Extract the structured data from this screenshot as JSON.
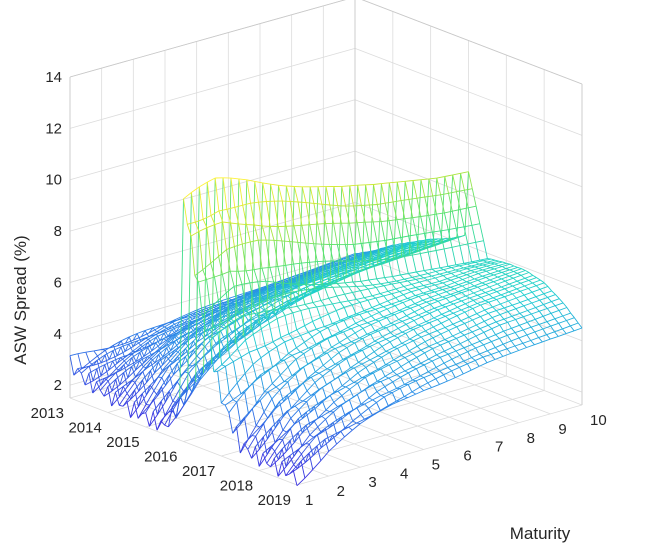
{
  "chart_data": {
    "type": "surface-mesh",
    "zlabel": "ASW Spread (%)",
    "ylabel": "Maturity",
    "x_ticks": [
      "2013",
      "2014",
      "2015",
      "2016",
      "2017",
      "2018",
      "2019"
    ],
    "y_ticks": [
      "1",
      "2",
      "3",
      "4",
      "5",
      "6",
      "7",
      "8",
      "9",
      "10"
    ],
    "z_ticks": [
      "2",
      "4",
      "6",
      "8",
      "10",
      "12",
      "14"
    ],
    "xlim": [
      2013,
      2019
    ],
    "ylim": [
      1,
      10
    ],
    "zlim": [
      1.5,
      14
    ],
    "grid": true,
    "colormap": [
      "#3a32e0",
      "#2a8be8",
      "#1fd0d0",
      "#46e07a",
      "#c8e830",
      "#fff23a"
    ],
    "surface_profiles": [
      {
        "x": 2013.0,
        "spread_by_maturity": [
          2.8,
          3.0,
          3.2,
          3.4,
          3.5,
          3.6,
          3.7,
          3.8,
          3.9,
          4.0
        ]
      },
      {
        "x": 2013.5,
        "spread_by_maturity": [
          2.4,
          2.9,
          3.3,
          3.6,
          3.8,
          4.0,
          4.1,
          4.2,
          4.3,
          4.4
        ]
      },
      {
        "x": 2014.0,
        "spread_by_maturity": [
          2.2,
          3.0,
          3.6,
          4.0,
          4.3,
          4.5,
          4.6,
          4.7,
          4.8,
          4.9
        ]
      },
      {
        "x": 2014.5,
        "spread_by_maturity": [
          2.0,
          3.2,
          4.0,
          4.4,
          4.7,
          4.9,
          5.0,
          5.1,
          5.2,
          5.3
        ]
      },
      {
        "x": 2015.0,
        "spread_by_maturity": [
          1.9,
          3.4,
          4.3,
          4.8,
          5.1,
          5.3,
          5.4,
          5.5,
          5.6,
          5.7
        ]
      },
      {
        "x": 2015.5,
        "spread_by_maturity": [
          1.8,
          3.3,
          4.2,
          4.8,
          5.2,
          5.5,
          5.7,
          5.8,
          5.9,
          6.0
        ]
      },
      {
        "x": 2016.0,
        "spread_by_maturity": [
          11.0,
          11.2,
          10.9,
          10.5,
          10.1,
          9.7,
          9.4,
          9.2,
          9.0,
          8.9
        ]
      },
      {
        "x": 2016.5,
        "spread_by_maturity": [
          6.8,
          7.3,
          7.2,
          6.9,
          6.6,
          6.3,
          6.1,
          6.0,
          5.9,
          5.8
        ]
      },
      {
        "x": 2017.0,
        "spread_by_maturity": [
          3.8,
          4.6,
          5.1,
          5.4,
          5.6,
          5.7,
          5.8,
          5.8,
          5.9,
          5.9
        ]
      },
      {
        "x": 2017.5,
        "spread_by_maturity": [
          2.2,
          3.6,
          4.4,
          4.9,
          5.2,
          5.4,
          5.6,
          5.7,
          5.8,
          5.9
        ]
      },
      {
        "x": 2018.0,
        "spread_by_maturity": [
          2.0,
          3.2,
          3.9,
          4.4,
          4.8,
          5.1,
          5.3,
          5.5,
          5.6,
          5.7
        ]
      },
      {
        "x": 2018.5,
        "spread_by_maturity": [
          1.9,
          2.9,
          3.5,
          4.0,
          4.3,
          4.6,
          4.8,
          5.0,
          5.1,
          5.2
        ]
      },
      {
        "x": 2019.0,
        "spread_by_maturity": [
          1.8,
          2.6,
          3.1,
          3.5,
          3.8,
          4.0,
          4.2,
          4.3,
          4.4,
          4.5
        ]
      }
    ]
  }
}
